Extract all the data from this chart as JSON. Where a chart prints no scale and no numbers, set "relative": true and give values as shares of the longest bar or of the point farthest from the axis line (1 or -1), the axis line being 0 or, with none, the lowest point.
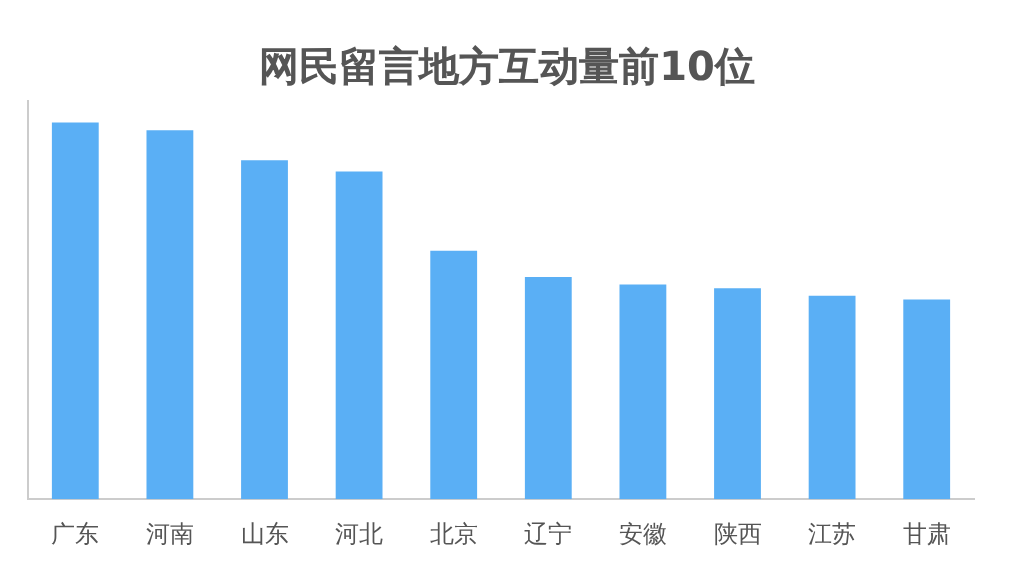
{
  "chart_data": {
    "type": "bar",
    "title": "网民留言地方互动量前10位",
    "relative": true,
    "legend": false,
    "categories": [
      "广东",
      "河南",
      "山东",
      "河北",
      "北京",
      "辽宁",
      "安徽",
      "陕西",
      "江苏",
      "甘肃"
    ],
    "values": [
      1,
      0.98,
      0.9,
      0.87,
      0.66,
      0.59,
      0.57,
      0.56,
      0.54,
      0.53
    ],
    "color": "#5aaff5"
  }
}
